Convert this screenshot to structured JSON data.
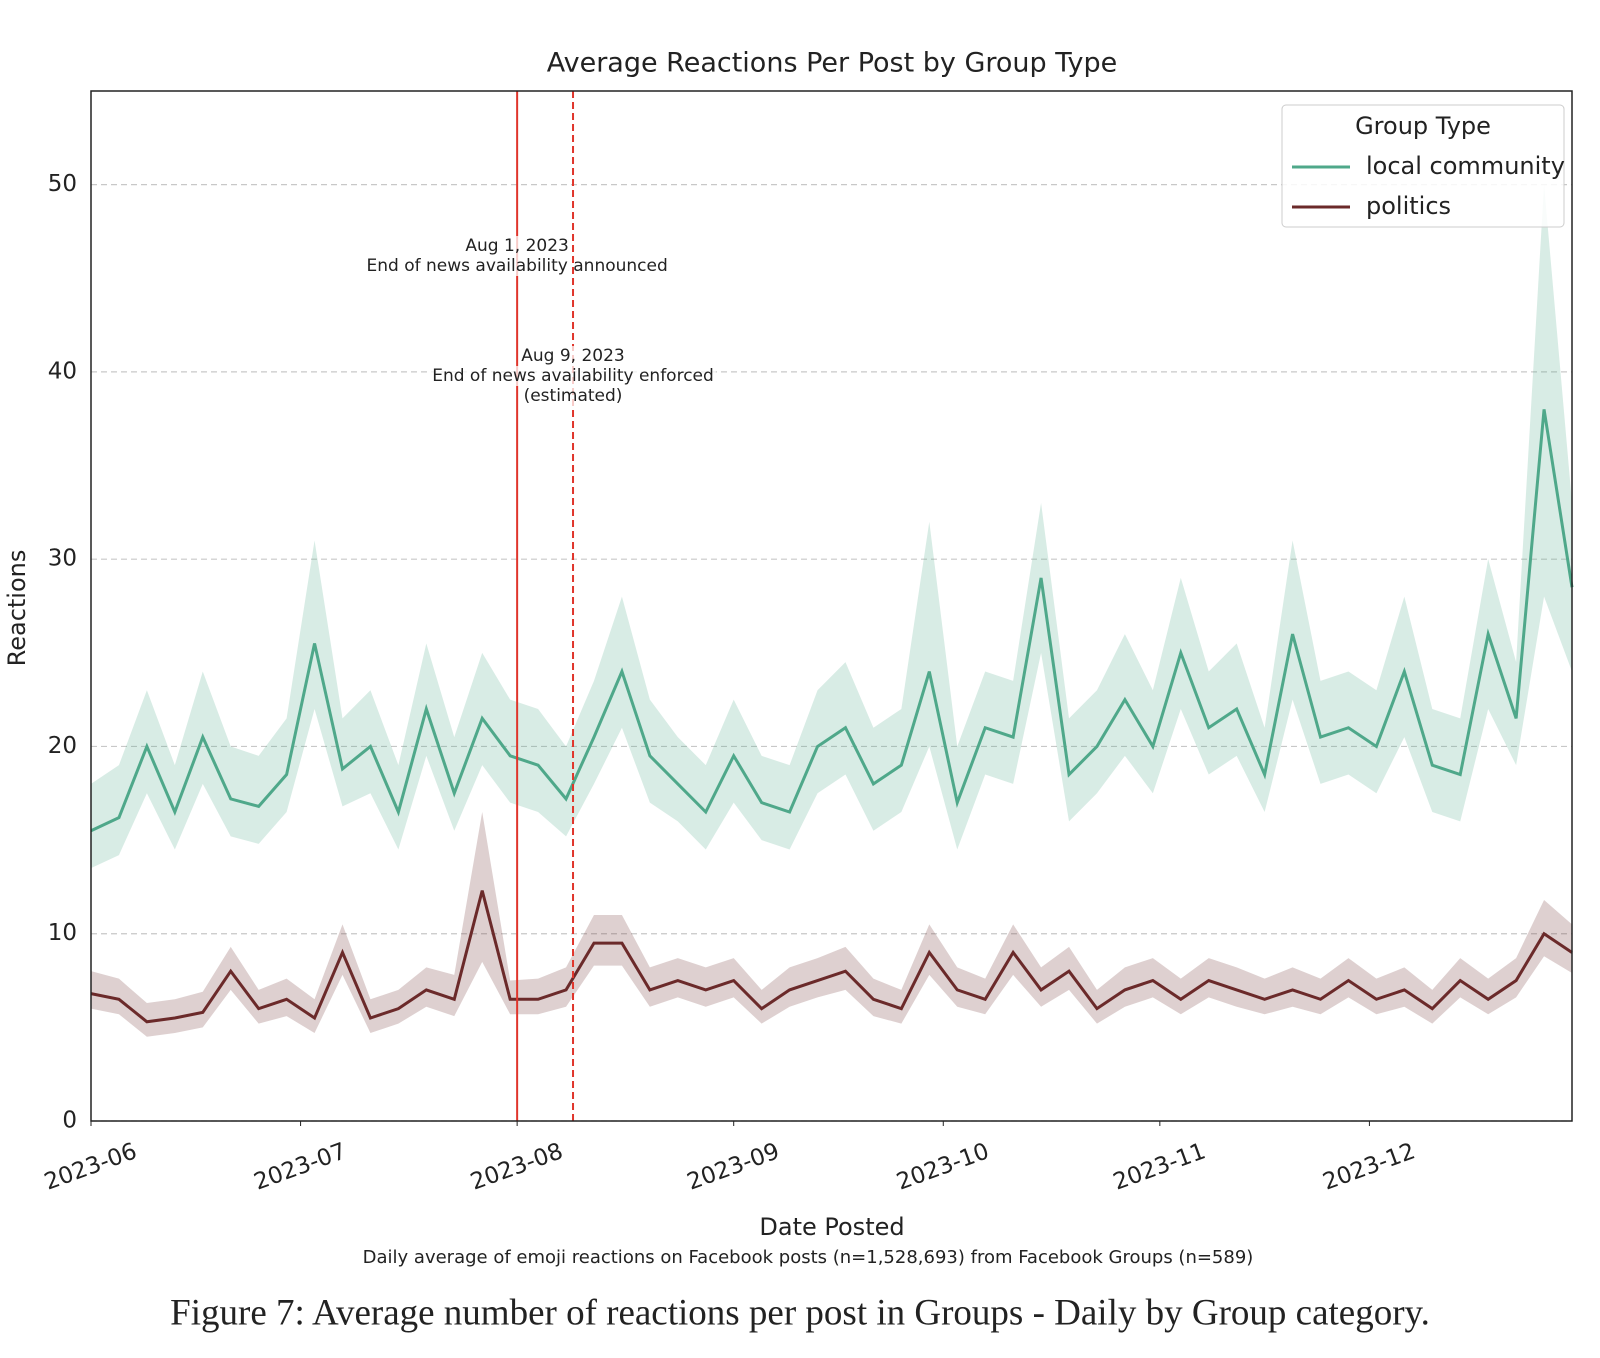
{
  "chart_data": {
    "type": "line",
    "title": "Average Reactions Per Post by Group Type",
    "xlabel": "Date Posted",
    "ylabel": "Reactions",
    "note": "Daily average of emoji reactions on Facebook posts (n=1,528,693) from Facebook Groups (n=589)",
    "caption": "Figure 7: Average number of reactions per post in Groups - Daily by Group category.",
    "legend_title": "Group Type",
    "legend": "upper right",
    "grid": true,
    "x": [
      "2023-06-01",
      "2023-06-05",
      "2023-06-09",
      "2023-06-13",
      "2023-06-17",
      "2023-06-21",
      "2023-06-25",
      "2023-06-29",
      "2023-07-03",
      "2023-07-07",
      "2023-07-11",
      "2023-07-15",
      "2023-07-19",
      "2023-07-23",
      "2023-07-27",
      "2023-07-31",
      "2023-08-04",
      "2023-08-08",
      "2023-08-12",
      "2023-08-16",
      "2023-08-20",
      "2023-08-24",
      "2023-08-28",
      "2023-09-01",
      "2023-09-05",
      "2023-09-09",
      "2023-09-13",
      "2023-09-17",
      "2023-09-21",
      "2023-09-25",
      "2023-09-29",
      "2023-10-03",
      "2023-10-07",
      "2023-10-11",
      "2023-10-15",
      "2023-10-19",
      "2023-10-23",
      "2023-10-27",
      "2023-10-31",
      "2023-11-04",
      "2023-11-08",
      "2023-11-12",
      "2023-11-16",
      "2023-11-20",
      "2023-11-24",
      "2023-11-28",
      "2023-12-02",
      "2023-12-06",
      "2023-12-10",
      "2023-12-14",
      "2023-12-18",
      "2023-12-22",
      "2023-12-26",
      "2023-12-30"
    ],
    "series": [
      {
        "name": "local community",
        "color": "#4fa88a",
        "values": [
          15.5,
          16.2,
          20.0,
          16.5,
          20.5,
          17.2,
          16.8,
          18.5,
          25.5,
          18.8,
          20.0,
          16.5,
          22.0,
          17.5,
          21.5,
          19.5,
          19.0,
          17.2,
          20.5,
          24.0,
          19.5,
          18.0,
          16.5,
          19.5,
          17.0,
          16.5,
          20.0,
          21.0,
          18.0,
          19.0,
          24.0,
          17.0,
          21.0,
          20.5,
          29.0,
          18.5,
          20.0,
          22.5,
          20.0,
          25.0,
          21.0,
          22.0,
          18.5,
          26.0,
          20.5,
          21.0,
          20.0,
          24.0,
          19.0,
          18.5,
          26.0,
          21.5,
          38.0,
          28.5
        ],
        "lower": [
          13.5,
          14.2,
          17.5,
          14.5,
          18.0,
          15.2,
          14.8,
          16.5,
          22.0,
          16.8,
          17.5,
          14.5,
          19.5,
          15.5,
          19.0,
          17.0,
          16.5,
          15.2,
          18.0,
          21.0,
          17.0,
          16.0,
          14.5,
          17.0,
          15.0,
          14.5,
          17.5,
          18.5,
          15.5,
          16.5,
          20.0,
          14.5,
          18.5,
          18.0,
          25.0,
          16.0,
          17.5,
          19.5,
          17.5,
          22.0,
          18.5,
          19.5,
          16.5,
          22.5,
          18.0,
          18.5,
          17.5,
          20.5,
          16.5,
          16.0,
          22.0,
          19.0,
          28.0,
          24.0
        ],
        "upper": [
          18,
          19,
          23,
          19,
          24,
          20,
          19.5,
          21.5,
          31,
          21.5,
          23,
          19,
          25.5,
          20.5,
          25,
          22.5,
          22,
          20,
          23.5,
          28,
          22.5,
          20.5,
          19,
          22.5,
          19.5,
          19,
          23,
          24.5,
          21,
          22,
          32,
          20,
          24,
          23.5,
          33,
          21.5,
          23,
          26,
          23,
          29,
          24,
          25.5,
          21,
          31,
          23.5,
          24,
          23,
          28,
          22,
          21.5,
          30,
          24.5,
          50,
          33
        ]
      },
      {
        "name": "politics",
        "color": "#6b2a2a",
        "values": [
          6.8,
          6.5,
          5.3,
          5.5,
          5.8,
          8.0,
          6.0,
          6.5,
          5.5,
          9.0,
          5.5,
          6.0,
          7.0,
          6.5,
          12.3,
          6.5,
          6.5,
          7.0,
          9.5,
          9.5,
          7.0,
          7.5,
          7.0,
          7.5,
          6.0,
          7.0,
          7.5,
          8.0,
          6.5,
          6.0,
          9.0,
          7.0,
          6.5,
          9.0,
          7.0,
          8.0,
          6.0,
          7.0,
          7.5,
          6.5,
          7.5,
          7.0,
          6.5,
          7.0,
          6.5,
          7.5,
          6.5,
          7.0,
          6.0,
          7.5,
          6.5,
          7.5,
          10.0,
          9.0
        ],
        "lower": [
          6.0,
          5.7,
          4.5,
          4.7,
          5.0,
          7.0,
          5.2,
          5.6,
          4.7,
          7.8,
          4.7,
          5.2,
          6.1,
          5.6,
          8.5,
          5.7,
          5.7,
          6.1,
          8.3,
          8.3,
          6.1,
          6.6,
          6.1,
          6.6,
          5.2,
          6.1,
          6.6,
          7.0,
          5.6,
          5.2,
          7.8,
          6.1,
          5.7,
          7.8,
          6.1,
          7.0,
          5.2,
          6.1,
          6.6,
          5.7,
          6.6,
          6.1,
          5.7,
          6.1,
          5.7,
          6.6,
          5.7,
          6.1,
          5.2,
          6.6,
          5.7,
          6.6,
          8.8,
          7.9
        ],
        "upper": [
          8.0,
          7.6,
          6.3,
          6.5,
          6.9,
          9.3,
          7.0,
          7.6,
          6.5,
          10.5,
          6.5,
          7.0,
          8.2,
          7.8,
          16.5,
          7.5,
          7.6,
          8.2,
          11.0,
          11.0,
          8.2,
          8.7,
          8.2,
          8.7,
          7.0,
          8.2,
          8.7,
          9.3,
          7.6,
          7.0,
          10.5,
          8.2,
          7.6,
          10.5,
          8.2,
          9.3,
          7.0,
          8.2,
          8.7,
          7.6,
          8.7,
          8.2,
          7.6,
          8.2,
          7.6,
          8.7,
          7.6,
          8.2,
          7.0,
          8.7,
          7.6,
          8.7,
          11.8,
          10.5
        ]
      }
    ],
    "xlim": [
      "2023-06-01",
      "2023-12-30"
    ],
    "xticks": [
      {
        "value": "2023-06-01",
        "label": "2023-06"
      },
      {
        "value": "2023-07-01",
        "label": "2023-07"
      },
      {
        "value": "2023-08-01",
        "label": "2023-08"
      },
      {
        "value": "2023-09-01",
        "label": "2023-09"
      },
      {
        "value": "2023-10-01",
        "label": "2023-10"
      },
      {
        "value": "2023-11-01",
        "label": "2023-11"
      },
      {
        "value": "2023-12-01",
        "label": "2023-12"
      }
    ],
    "ylim": [
      0,
      55
    ],
    "yticks": [
      0,
      10,
      20,
      30,
      40,
      50
    ],
    "annotations": [
      {
        "x": "2023-08-01",
        "style": "solid",
        "color": "#e0352b",
        "text": [
          "Aug 1, 2023",
          "End of news availability announced"
        ]
      },
      {
        "x": "2023-08-09",
        "style": "dashed",
        "color": "#e0352b",
        "text": [
          "Aug 9, 2023",
          "End of news availability enforced",
          "(estimated)"
        ]
      }
    ]
  }
}
